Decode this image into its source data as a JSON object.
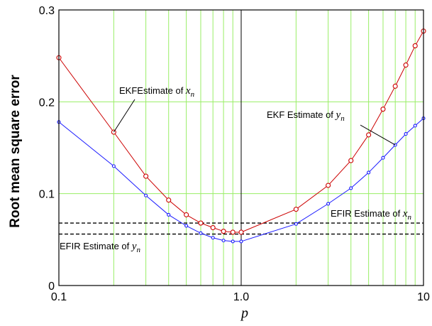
{
  "chart_data": {
    "type": "line",
    "x_scale": "log",
    "xlabel": "p",
    "ylabel": "Root mean square error",
    "xlim": [
      0.1,
      10
    ],
    "ylim": [
      0,
      0.3
    ],
    "x_ticks": [
      {
        "value": 0.1,
        "label": "0.1"
      },
      {
        "value": 1,
        "label": "1.0"
      },
      {
        "value": 10,
        "label": "10"
      }
    ],
    "y_ticks": [
      {
        "value": 0,
        "label": "0"
      },
      {
        "value": 0.1,
        "label": "0.1"
      },
      {
        "value": 0.2,
        "label": "0.2"
      },
      {
        "value": 0.3,
        "label": "0.3"
      }
    ],
    "grid": true,
    "x": [
      0.1,
      0.2,
      0.3,
      0.4,
      0.5,
      0.6,
      0.7,
      0.8,
      0.9,
      1,
      2,
      3,
      4,
      5,
      6,
      7,
      8,
      9,
      10
    ],
    "series": [
      {
        "color": "#cc0000",
        "marker": "circle",
        "values": [
          0.248,
          0.167,
          0.119,
          0.093,
          0.077,
          0.068,
          0.063,
          0.059,
          0.058,
          0.058,
          0.083,
          0.109,
          0.136,
          0.164,
          0.192,
          0.217,
          0.24,
          0.261,
          0.277
        ]
      },
      {
        "color": "#1a1aff",
        "marker": "circle-small",
        "values": [
          0.178,
          0.13,
          0.098,
          0.077,
          0.065,
          0.057,
          0.052,
          0.049,
          0.048,
          0.048,
          0.067,
          0.089,
          0.106,
          0.123,
          0.139,
          0.153,
          0.165,
          0.174,
          0.182
        ]
      }
    ],
    "reference_lines": [
      {
        "y": 0.068,
        "style": "dashed",
        "color": "#000000"
      },
      {
        "y": 0.056,
        "style": "dashed",
        "color": "#000000"
      }
    ],
    "annotations": [
      {
        "text": "EKFEstimate of ",
        "var": "x",
        "sub": "n"
      },
      {
        "text": "EKF Estimate of ",
        "var": "y",
        "sub": "n"
      },
      {
        "text": "EFIR Estimate of ",
        "var": "x",
        "sub": "n"
      },
      {
        "text": "EFIR Estimate of ",
        "var": "y",
        "sub": "n"
      }
    ],
    "colors": {
      "grid": "#99ee66",
      "axis": "#000000"
    }
  }
}
